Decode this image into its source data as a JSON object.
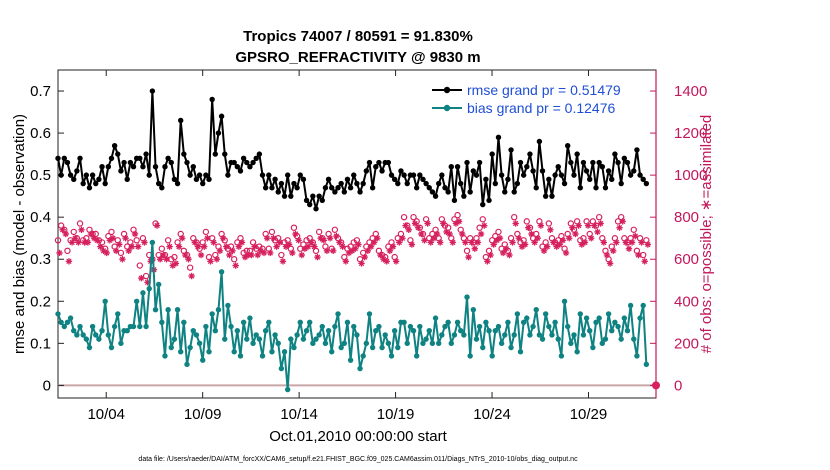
{
  "chart_data": {
    "type": "line",
    "title": "Tropics 74007 / 80591 = 91.830%",
    "subtitle": "GPSRO_REFRACTIVITY @ 9830 m",
    "xlabel": "Oct.01,2010 00:00:00 start",
    "ylabel_left": "rmse and bias (model - observation)",
    "ylabel_right": "# of obs: o=possible; ∗=assimilated",
    "x_range_days": [
      1.5,
      32.5
    ],
    "x_ticks": [
      {
        "day": 4,
        "label": "10/04"
      },
      {
        "day": 9,
        "label": "10/09"
      },
      {
        "day": 14,
        "label": "10/14"
      },
      {
        "day": 19,
        "label": "10/19"
      },
      {
        "day": 24,
        "label": "10/24"
      },
      {
        "day": 29,
        "label": "10/29"
      }
    ],
    "ylim_left": [
      -0.03,
      0.75
    ],
    "yticks_left": [
      {
        "v": 0,
        "label": "0"
      },
      {
        "v": 0.1,
        "label": "0.1"
      },
      {
        "v": 0.2,
        "label": "0.2"
      },
      {
        "v": 0.3,
        "label": "0.3"
      },
      {
        "v": 0.4,
        "label": "0.4"
      },
      {
        "v": 0.5,
        "label": "0.5"
      },
      {
        "v": 0.6,
        "label": "0.6"
      },
      {
        "v": 0.7,
        "label": "0.7"
      }
    ],
    "ylim_right": [
      -60,
      1500
    ],
    "yticks_right": [
      {
        "v": 0,
        "label": "0"
      },
      {
        "v": 200,
        "label": "200"
      },
      {
        "v": 400,
        "label": "400"
      },
      {
        "v": 600,
        "label": "600"
      },
      {
        "v": 800,
        "label": "800"
      },
      {
        "v": 1000,
        "label": "1000"
      },
      {
        "v": 1200,
        "label": "1200"
      },
      {
        "v": 1400,
        "label": "1400"
      }
    ],
    "series": [
      {
        "name": "rmse grand pr = 0.51479",
        "color": "#000000",
        "values": [
          0.54,
          0.5,
          0.54,
          0.53,
          0.5,
          0.49,
          0.51,
          0.54,
          0.48,
          0.5,
          0.47,
          0.5,
          0.48,
          0.49,
          0.52,
          0.48,
          0.52,
          0.54,
          0.57,
          0.55,
          0.51,
          0.53,
          0.49,
          0.53,
          0.52,
          0.54,
          0.54,
          0.52,
          0.55,
          0.5,
          0.7,
          0.52,
          0.48,
          0.47,
          0.52,
          0.54,
          0.53,
          0.49,
          0.48,
          0.63,
          0.55,
          0.53,
          0.5,
          0.52,
          0.49,
          0.5,
          0.48,
          0.5,
          0.49,
          0.68,
          0.55,
          0.6,
          0.64,
          0.55,
          0.5,
          0.53,
          0.53,
          0.52,
          0.51,
          0.54,
          0.53,
          0.52,
          0.53,
          0.54,
          0.55,
          0.5,
          0.47,
          0.5,
          0.47,
          0.49,
          0.46,
          0.48,
          0.45,
          0.5,
          0.45,
          0.48,
          0.47,
          0.5,
          0.49,
          0.44,
          0.43,
          0.45,
          0.42,
          0.45,
          0.44,
          0.47,
          0.49,
          0.47,
          0.46,
          0.47,
          0.48,
          0.46,
          0.49,
          0.47,
          0.5,
          0.48,
          0.46,
          0.48,
          0.51,
          0.53,
          0.47,
          0.52,
          0.53,
          0.51,
          0.53,
          0.53,
          0.5,
          0.49,
          0.48,
          0.51,
          0.5,
          0.48,
          0.5,
          0.5,
          0.47,
          0.5,
          0.49,
          0.48,
          0.47,
          0.46,
          0.45,
          0.48,
          0.5,
          0.47,
          0.46,
          0.52,
          0.44,
          0.52,
          0.48,
          0.45,
          0.53,
          0.46,
          0.51,
          0.5,
          0.53,
          0.43,
          0.49,
          0.44,
          0.55,
          0.48,
          0.59,
          0.5,
          0.46,
          0.49,
          0.56,
          0.46,
          0.48,
          0.53,
          0.5,
          0.52,
          0.55,
          0.51,
          0.47,
          0.58,
          0.51,
          0.45,
          0.49,
          0.45,
          0.5,
          0.52,
          0.5,
          0.48,
          0.57,
          0.53,
          0.5,
          0.55,
          0.47,
          0.53,
          0.51,
          0.49,
          0.53,
          0.47,
          0.53,
          0.52,
          0.47,
          0.51,
          0.49,
          0.55,
          0.53,
          0.48,
          0.54,
          0.53,
          0.5,
          0.51,
          0.56,
          0.5,
          0.49,
          0.48
        ]
      },
      {
        "name": "bias grand pr = 0.12476",
        "color": "#0f8282",
        "values": [
          0.17,
          0.15,
          0.14,
          0.15,
          0.16,
          0.13,
          0.12,
          0.14,
          0.12,
          0.11,
          0.09,
          0.14,
          0.12,
          0.11,
          0.13,
          0.2,
          0.12,
          0.09,
          0.14,
          0.17,
          0.1,
          0.13,
          0.13,
          0.14,
          0.14,
          0.2,
          0.14,
          0.22,
          0.14,
          0.23,
          0.34,
          0.18,
          0.24,
          0.15,
          0.07,
          0.18,
          0.09,
          0.11,
          0.18,
          0.08,
          0.15,
          0.05,
          0.09,
          0.13,
          0.12,
          0.1,
          0.06,
          0.14,
          0.08,
          0.17,
          0.13,
          0.18,
          0.27,
          0.11,
          0.19,
          0.14,
          0.08,
          0.13,
          0.07,
          0.15,
          0.11,
          0.16,
          0.1,
          0.12,
          0.11,
          0.07,
          0.13,
          0.15,
          0.08,
          0.12,
          0.1,
          0.04,
          0.08,
          -0.01,
          0.11,
          0.09,
          0.12,
          0.15,
          0.11,
          0.13,
          0.15,
          0.1,
          0.11,
          0.12,
          0.14,
          0.1,
          0.13,
          0.08,
          0.14,
          0.17,
          0.09,
          0.1,
          0.15,
          0.06,
          0.14,
          0.12,
          0.04,
          0.07,
          0.1,
          0.17,
          0.09,
          0.13,
          0.14,
          0.09,
          0.12,
          0.1,
          0.07,
          0.13,
          0.09,
          0.15,
          0.15,
          0.1,
          0.14,
          0.13,
          0.07,
          0.14,
          0.1,
          0.11,
          0.13,
          0.1,
          0.16,
          0.1,
          0.12,
          0.14,
          0.15,
          0.1,
          0.12,
          0.15,
          0.13,
          0.12,
          0.21,
          0.07,
          0.18,
          0.11,
          0.14,
          0.09,
          0.15,
          0.13,
          0.07,
          0.13,
          0.14,
          0.1,
          0.12,
          0.15,
          0.09,
          0.12,
          0.17,
          0.08,
          0.15,
          0.16,
          0.12,
          0.14,
          0.18,
          0.12,
          0.11,
          0.17,
          0.14,
          0.12,
          0.15,
          0.11,
          0.07,
          0.2,
          0.14,
          0.1,
          0.12,
          0.08,
          0.17,
          0.12,
          0.16,
          0.13,
          0.09,
          0.15,
          0.16,
          0.1,
          0.11,
          0.17,
          0.13,
          0.15,
          0.14,
          0.11,
          0.16,
          0.13,
          0.19,
          0.11,
          0.07,
          0.16,
          0.19,
          0.05
        ]
      }
    ],
    "obs_possible": [
      690,
      760,
      740,
      640,
      690,
      730,
      700,
      770,
      690,
      700,
      740,
      720,
      720,
      690,
      680,
      650,
      710,
      730,
      660,
      690,
      630,
      720,
      660,
      680,
      740,
      690,
      570,
      700,
      520,
      620,
      600,
      770,
      620,
      650,
      620,
      690,
      600,
      610,
      680,
      720,
      640,
      620,
      560,
      700,
      680,
      650,
      680,
      730,
      610,
      700,
      620,
      660,
      720,
      690,
      650,
      660,
      600,
      680,
      700,
      630,
      640,
      640,
      680,
      650,
      660,
      650,
      720,
      650,
      730,
      690,
      700,
      620,
      680,
      690,
      650,
      750,
      710,
      650,
      670,
      690,
      700,
      680,
      640,
      730,
      700,
      660,
      720,
      650,
      740,
      700,
      680,
      610,
      650,
      660,
      680,
      690,
      600,
      630,
      660,
      680,
      700,
      720,
      640,
      620,
      610,
      660,
      680,
      610,
      700,
      720,
      800,
      760,
      690,
      800,
      780,
      750,
      720,
      790,
      700,
      720,
      740,
      700,
      790,
      760,
      750,
      700,
      790,
      810,
      740,
      700,
      640,
      700,
      680,
      700,
      750,
      790,
      610,
      640,
      690,
      710,
      730,
      650,
      670,
      640,
      700,
      800,
      720,
      680,
      690,
      780,
      750,
      700,
      720,
      780,
      660,
      680,
      770,
      700,
      680,
      690,
      710,
      650,
      720,
      770,
      740,
      780,
      690,
      700,
      780,
      720,
      780,
      760,
      800,
      700,
      640,
      600,
      660,
      700,
      780,
      800,
      700,
      680,
      700,
      740,
      640,
      700,
      620,
      690
    ],
    "obs_assimilated": [
      630,
      740,
      720,
      590,
      680,
      700,
      680,
      740,
      680,
      680,
      720,
      700,
      690,
      660,
      640,
      630,
      690,
      700,
      640,
      670,
      600,
      700,
      640,
      660,
      720,
      660,
      510,
      680,
      490,
      590,
      550,
      760,
      600,
      620,
      600,
      660,
      570,
      580,
      660,
      700,
      620,
      600,
      520,
      680,
      660,
      620,
      660,
      700,
      590,
      680,
      600,
      640,
      700,
      660,
      620,
      640,
      570,
      660,
      680,
      610,
      620,
      620,
      660,
      620,
      640,
      630,
      700,
      630,
      700,
      660,
      680,
      590,
      660,
      670,
      630,
      720,
      690,
      620,
      650,
      660,
      680,
      660,
      610,
      700,
      690,
      640,
      700,
      640,
      710,
      680,
      660,
      590,
      630,
      640,
      650,
      670,
      580,
      610,
      640,
      660,
      680,
      700,
      620,
      600,
      590,
      640,
      660,
      590,
      680,
      700,
      760,
      740,
      670,
      770,
      750,
      720,
      690,
      770,
      680,
      700,
      720,
      680,
      770,
      730,
      720,
      680,
      770,
      780,
      720,
      680,
      610,
      680,
      650,
      680,
      720,
      760,
      590,
      620,
      670,
      690,
      700,
      630,
      650,
      620,
      680,
      770,
      700,
      660,
      670,
      750,
      720,
      680,
      700,
      760,
      640,
      660,
      740,
      680,
      660,
      670,
      690,
      630,
      700,
      750,
      720,
      760,
      670,
      680,
      760,
      700,
      760,
      730,
      770,
      680,
      620,
      580,
      640,
      680,
      750,
      780,
      680,
      650,
      680,
      710,
      620,
      680,
      590,
      670
    ],
    "legend_position": "top-right"
  },
  "footer": {
    "datafile": "data file: /Users/raeder/DAI/ATM_forcXX/CAM6_setup/f.e21.FHIST_BGC.f09_025.CAM6assim.011/Diags_NTrS_2010-10/obs_diag_output.nc"
  }
}
